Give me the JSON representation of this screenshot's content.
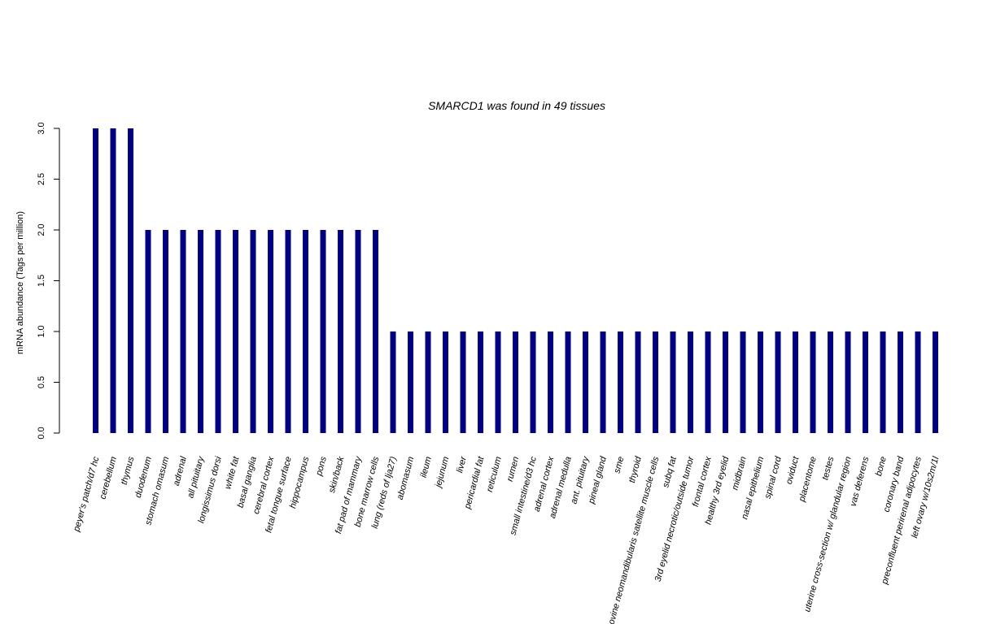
{
  "chart_data": {
    "type": "bar",
    "title": "SMARCD1  was found in  49  tissues",
    "xlabel": "",
    "ylabel": "mRNA abundance (Tags per million)",
    "ylim": [
      0,
      3
    ],
    "yticks": [
      "0.0",
      "0.5",
      "1.0",
      "1.5",
      "2.0",
      "2.5",
      "3.0"
    ],
    "bar_color": "#000080",
    "categories": [
      "peyer's patch/d7 hc",
      "cerebellum",
      "thymus",
      "duodenum",
      "stomach omasum",
      "adrenal",
      "all pituitary",
      "longissimus dorsi",
      "white fat",
      "basal ganglia",
      "cerebral cortex",
      "fetal tongue surface",
      "hippocampus",
      "pons",
      "skin/back",
      "fat pad of mammary",
      "bone marrow cells",
      "lung (reds of lja27)",
      "abomasum",
      "ileum",
      "jejunum",
      "liver",
      "pericardial fat",
      "reticulum",
      "rumen",
      "small intestine/d3 hc",
      "adrenal cortex",
      "adrenal medulla",
      "ant. pituitary",
      "pineal gland",
      "sme",
      "thyroid",
      "bovine neomandibularis satellite muscle cells",
      "subq fat",
      "3rd eyelid necrotic/outside tumor",
      "frontal cortex",
      "healthy 3rd eyelid",
      "midbrain",
      "nasal epithelium",
      "spinal cord",
      "oviduct",
      "placentome",
      "testes",
      "uterine cross-section w/ glandular region",
      "vas deferens",
      "bone",
      "coronary band",
      "preconfluent perirenal adipocytes",
      "left ovary w/10s2m/1l"
    ],
    "values": [
      3,
      3,
      3,
      2,
      2,
      2,
      2,
      2,
      2,
      2,
      2,
      2,
      2,
      2,
      2,
      2,
      2,
      1,
      1,
      1,
      1,
      1,
      1,
      1,
      1,
      1,
      1,
      1,
      1,
      1,
      1,
      1,
      1,
      1,
      1,
      1,
      1,
      1,
      1,
      1,
      1,
      1,
      1,
      1,
      1,
      1,
      1,
      1,
      1
    ]
  }
}
